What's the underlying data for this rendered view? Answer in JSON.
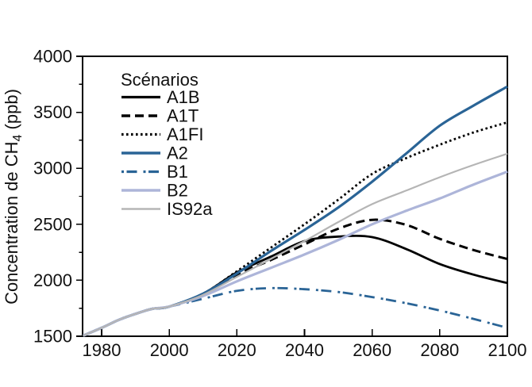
{
  "figure": {
    "description": "Projections de concentration de methane CH4 selon les scenarios SRES",
    "background_color": "#ffffff",
    "axis_color": "#000000",
    "text_color": "#111111"
  },
  "chart_data": {
    "type": "line",
    "title": "",
    "xlabel": "",
    "ylabel": "Concentration de CH4 (ppb)",
    "ylabel_parts": {
      "main": "Concentration de CH",
      "sub": "4",
      "unit": "  (ppb)"
    },
    "xlim": [
      1974.5,
      2100
    ],
    "ylim": [
      1500,
      4000
    ],
    "x_ticks": [
      1980,
      2000,
      2020,
      2040,
      2060,
      2080,
      2100
    ],
    "y_ticks_major": [
      1500,
      2000,
      2500,
      3000,
      3500,
      4000
    ],
    "y_ticks_minor": [
      1750,
      2250,
      2750,
      3250,
      3750
    ],
    "grid": "off",
    "legend_position": "upper-left-inside",
    "legend_title": "Scénarios",
    "x": [
      1974.5,
      1980,
      1985,
      1990,
      1995,
      2000,
      2010,
      2020,
      2030,
      2040,
      2050,
      2060,
      2070,
      2080,
      2090,
      2100
    ],
    "series": [
      {
        "name": "A1B",
        "color": "#000000",
        "style": "solid",
        "width": 2.8,
        "values": [
          1505,
          1575,
          1645,
          1700,
          1745,
          1765,
          1880,
          2070,
          2210,
          2350,
          2390,
          2385,
          2280,
          2145,
          2050,
          1975
        ]
      },
      {
        "name": "A1T",
        "color": "#000000",
        "style": "dashed",
        "width": 3.0,
        "values": [
          1505,
          1575,
          1645,
          1700,
          1745,
          1765,
          1870,
          2050,
          2180,
          2320,
          2460,
          2540,
          2495,
          2370,
          2270,
          2190
        ]
      },
      {
        "name": "A1FI",
        "color": "#000000",
        "style": "dotted",
        "width": 2.8,
        "values": [
          1505,
          1575,
          1645,
          1700,
          1745,
          1765,
          1880,
          2080,
          2290,
          2500,
          2720,
          2950,
          3090,
          3210,
          3320,
          3410
        ]
      },
      {
        "name": "A2",
        "color": "#2A6496",
        "style": "solid",
        "width": 3.2,
        "values": [
          1505,
          1575,
          1645,
          1700,
          1745,
          1765,
          1880,
          2060,
          2260,
          2450,
          2650,
          2880,
          3130,
          3380,
          3560,
          3730
        ]
      },
      {
        "name": "B1",
        "color": "#2A6496",
        "style": "dashdot",
        "width": 2.8,
        "values": [
          1505,
          1575,
          1645,
          1700,
          1745,
          1765,
          1835,
          1905,
          1930,
          1920,
          1895,
          1850,
          1795,
          1730,
          1655,
          1575
        ]
      },
      {
        "name": "B2",
        "color": "#ADB5D9",
        "style": "solid",
        "width": 3.2,
        "values": [
          1505,
          1575,
          1645,
          1700,
          1745,
          1765,
          1860,
          1990,
          2110,
          2230,
          2360,
          2500,
          2620,
          2730,
          2855,
          2970
        ]
      },
      {
        "name": "IS92a",
        "color": "#B5B5B5",
        "style": "solid",
        "width": 2.2,
        "values": [
          1505,
          1575,
          1645,
          1700,
          1745,
          1765,
          1870,
          2030,
          2190,
          2350,
          2520,
          2680,
          2800,
          2920,
          3030,
          3130
        ]
      }
    ]
  }
}
